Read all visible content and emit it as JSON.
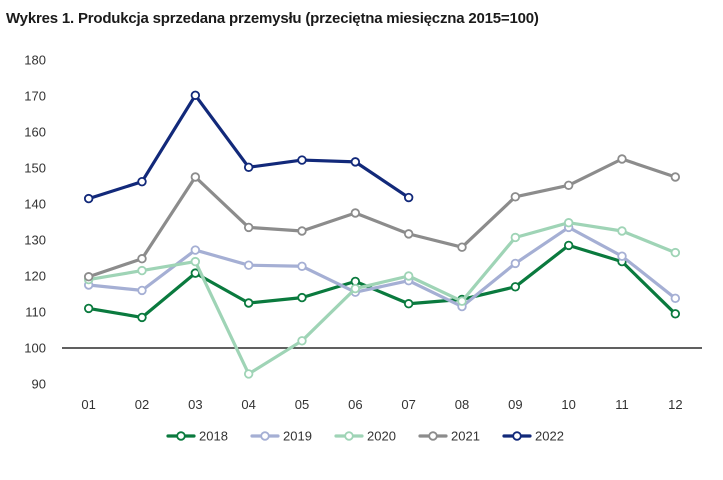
{
  "chart_data": {
    "type": "line",
    "title": "Wykres 1. Produkcja sprzedana przemysłu (przeciętna miesięczna 2015=100)",
    "xlabel": "",
    "ylabel": "",
    "categories": [
      "01",
      "02",
      "03",
      "04",
      "05",
      "06",
      "07",
      "08",
      "09",
      "10",
      "11",
      "12"
    ],
    "ylim": [
      90,
      180
    ],
    "yticks": [
      90,
      100,
      110,
      120,
      130,
      140,
      150,
      160,
      170,
      180
    ],
    "reference_line": 100,
    "grid": false,
    "legend_position": "bottom",
    "series": [
      {
        "name": "2018",
        "color": "#0a7a3e",
        "values": [
          111.0,
          108.5,
          120.8,
          112.5,
          114.0,
          118.5,
          112.3,
          113.5,
          117.0,
          128.5,
          124.0,
          109.5
        ]
      },
      {
        "name": "2019",
        "color": "#a5afd4",
        "values": [
          117.5,
          116.0,
          127.2,
          123.0,
          122.7,
          115.5,
          118.7,
          111.5,
          123.5,
          133.5,
          125.5,
          113.8
        ]
      },
      {
        "name": "2020",
        "color": "#9fd4b6",
        "values": [
          119.0,
          121.5,
          124.0,
          92.8,
          102.0,
          116.5,
          120.0,
          113.0,
          130.7,
          134.8,
          132.5,
          126.5
        ]
      },
      {
        "name": "2021",
        "color": "#8c8c8c",
        "values": [
          119.8,
          124.8,
          147.5,
          133.5,
          132.5,
          137.5,
          131.7,
          128.0,
          142.0,
          145.2,
          152.5,
          147.5
        ]
      },
      {
        "name": "2022",
        "color": "#12297a",
        "values": [
          141.5,
          146.2,
          170.2,
          150.2,
          152.2,
          151.7,
          141.8,
          null,
          null,
          null,
          null,
          null
        ]
      }
    ]
  }
}
